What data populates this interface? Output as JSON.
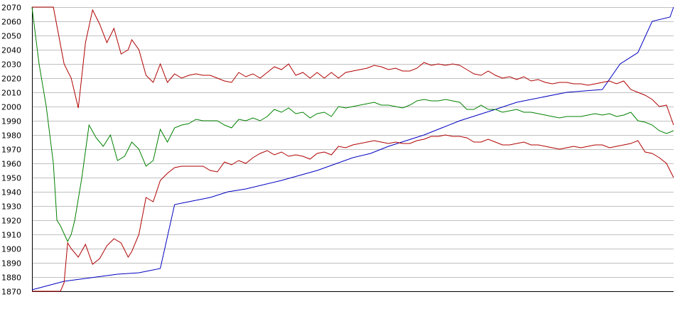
{
  "chart_data": {
    "type": "line",
    "title": "",
    "xlabel": "",
    "ylabel": "",
    "ylim": [
      1870,
      2070
    ],
    "xlim": [
      0,
      180
    ],
    "yticks": [
      1870,
      1880,
      1890,
      1900,
      1910,
      1920,
      1930,
      1940,
      1950,
      1960,
      1970,
      1980,
      1990,
      2000,
      2010,
      2020,
      2030,
      2040,
      2050,
      2060,
      2070
    ],
    "grid": true,
    "legend": "none",
    "colors": {
      "grid": "#c0c0c0",
      "axis": "#000000"
    },
    "series": [
      {
        "color": "#0000c0",
        "x": [
          0,
          6,
          9,
          12,
          18,
          24,
          30,
          36,
          40,
          42,
          50,
          55,
          60,
          70,
          80,
          90,
          95,
          100,
          110,
          115,
          120,
          130,
          136,
          140,
          150,
          160,
          165,
          170,
          174,
          179,
          180
        ],
        "y": [
          1871,
          1875,
          1877,
          1878,
          1880,
          1882,
          1883,
          1886,
          1931,
          1932,
          1936,
          1940,
          1942,
          1948,
          1955,
          1964,
          1967,
          1972,
          1980,
          1985,
          1990,
          1998,
          2003,
          2005,
          2010,
          2012,
          2030,
          2038,
          2060,
          2063,
          2070
        ]
      },
      {
        "color": "#b00000",
        "x": [
          0,
          2,
          4,
          6,
          9,
          11,
          13,
          15,
          17,
          19,
          21,
          23,
          25,
          27,
          28,
          30,
          32,
          34,
          36,
          38,
          40,
          42,
          44,
          46,
          48,
          50,
          52,
          54,
          56,
          58,
          60,
          62,
          64,
          66,
          68,
          70,
          72,
          74,
          76,
          78,
          80,
          82,
          84,
          86,
          88,
          90,
          92,
          94,
          96,
          98,
          100,
          102,
          104,
          106,
          108,
          110,
          112,
          114,
          116,
          118,
          120,
          122,
          124,
          126,
          128,
          130,
          132,
          134,
          136,
          138,
          140,
          142,
          144,
          146,
          148,
          150,
          152,
          154,
          156,
          158,
          160,
          162,
          164,
          166,
          168,
          170,
          172,
          174,
          176,
          178,
          180
        ],
        "y": [
          2070,
          2070,
          2070,
          2070,
          2030,
          2020,
          1999,
          2045,
          2068,
          2058,
          2045,
          2055,
          2037,
          2040,
          2047,
          2040,
          2022,
          2017,
          2030,
          2017,
          2023,
          2020,
          2022,
          2023,
          2022,
          2022,
          2020,
          2018,
          2017,
          2024,
          2021,
          2023,
          2020,
          2024,
          2028,
          2026,
          2030,
          2022,
          2024,
          2020,
          2024,
          2020,
          2024,
          2020,
          2024,
          2025,
          2026,
          2027,
          2029,
          2028,
          2026,
          2027,
          2025,
          2025,
          2027,
          2031,
          2029,
          2030,
          2029,
          2030,
          2029,
          2026,
          2023,
          2022,
          2025,
          2022,
          2020,
          2021,
          2019,
          2021,
          2018,
          2019,
          2017,
          2016,
          2017,
          2017,
          2016,
          2016,
          2015,
          2016,
          2017,
          2018,
          2016,
          2018,
          2012,
          2010,
          2008,
          2005,
          2000,
          2001,
          1987
        ]
      },
      {
        "color": "#008000",
        "x": [
          0,
          2,
          4,
          5,
          6,
          7,
          8,
          10,
          11,
          12,
          14,
          16,
          18,
          20,
          22,
          24,
          26,
          28,
          30,
          32,
          34,
          36,
          38,
          40,
          42,
          44,
          46,
          48,
          50,
          52,
          54,
          56,
          58,
          60,
          62,
          64,
          66,
          68,
          70,
          72,
          74,
          76,
          78,
          80,
          82,
          84,
          86,
          88,
          90,
          92,
          94,
          96,
          98,
          100,
          102,
          104,
          106,
          108,
          110,
          112,
          114,
          116,
          118,
          120,
          122,
          124,
          126,
          128,
          130,
          132,
          134,
          136,
          138,
          140,
          142,
          144,
          146,
          148,
          150,
          152,
          154,
          156,
          158,
          160,
          162,
          164,
          166,
          168,
          170,
          172,
          174,
          176,
          178,
          180
        ],
        "y": [
          2070,
          2030,
          2000,
          1980,
          1960,
          1920,
          1916,
          1905,
          1910,
          1920,
          1950,
          1987,
          1978,
          1972,
          1980,
          1962,
          1965,
          1975,
          1970,
          1958,
          1962,
          1984,
          1975,
          1985,
          1987,
          1988,
          1991,
          1990,
          1990,
          1990,
          1987,
          1985,
          1991,
          1990,
          1992,
          1990,
          1993,
          1998,
          1996,
          1999,
          1995,
          1996,
          1992,
          1995,
          1996,
          1993,
          2000,
          1999,
          2000,
          2001,
          2002,
          2003,
          2001,
          2001,
          2000,
          1999,
          2001,
          2004,
          2005,
          2004,
          2004,
          2005,
          2004,
          2003,
          1998,
          1998,
          2001,
          1998,
          1998,
          1996,
          1997,
          1998,
          1996,
          1996,
          1995,
          1994,
          1993,
          1992,
          1993,
          1993,
          1993,
          1994,
          1995,
          1994,
          1995,
          1993,
          1994,
          1996,
          1990,
          1989,
          1987,
          1983,
          1981,
          1983
        ]
      },
      {
        "color": "#b00000",
        "x": [
          0,
          2,
          4,
          6,
          8,
          9,
          10,
          11,
          13,
          15,
          17,
          19,
          21,
          23,
          25,
          27,
          28,
          30,
          32,
          34,
          36,
          38,
          40,
          42,
          44,
          46,
          48,
          50,
          52,
          54,
          56,
          58,
          60,
          62,
          64,
          66,
          68,
          70,
          72,
          74,
          76,
          78,
          80,
          82,
          84,
          86,
          88,
          90,
          92,
          94,
          96,
          98,
          100,
          102,
          104,
          106,
          108,
          110,
          112,
          114,
          116,
          118,
          120,
          122,
          124,
          126,
          128,
          130,
          132,
          134,
          136,
          138,
          140,
          142,
          144,
          146,
          148,
          150,
          152,
          154,
          156,
          158,
          160,
          162,
          164,
          166,
          168,
          170,
          172,
          174,
          176,
          178,
          180
        ],
        "y": [
          1870,
          1870,
          1870,
          1870,
          1870,
          1876,
          1904,
          1900,
          1894,
          1903,
          1889,
          1893,
          1902,
          1907,
          1904,
          1894,
          1898,
          1910,
          1936,
          1933,
          1948,
          1953,
          1957,
          1958,
          1958,
          1958,
          1958,
          1955,
          1954,
          1961,
          1959,
          1962,
          1960,
          1964,
          1967,
          1969,
          1966,
          1968,
          1965,
          1966,
          1965,
          1963,
          1967,
          1968,
          1966,
          1972,
          1971,
          1973,
          1974,
          1975,
          1976,
          1975,
          1974,
          1975,
          1974,
          1974,
          1976,
          1977,
          1979,
          1979,
          1980,
          1979,
          1979,
          1978,
          1975,
          1975,
          1977,
          1975,
          1973,
          1973,
          1974,
          1975,
          1973,
          1973,
          1972,
          1971,
          1970,
          1971,
          1972,
          1971,
          1972,
          1973,
          1973,
          1971,
          1972,
          1973,
          1974,
          1976,
          1968,
          1967,
          1964,
          1960,
          1950
        ]
      }
    ]
  }
}
